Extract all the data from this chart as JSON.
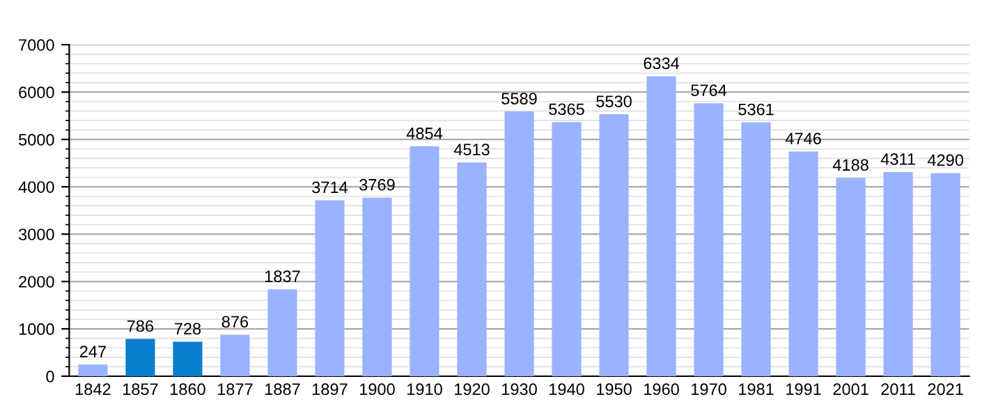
{
  "chart_data": {
    "type": "bar",
    "categories": [
      "1842",
      "1857",
      "1860",
      "1877",
      "1887",
      "1897",
      "1900",
      "1910",
      "1920",
      "1930",
      "1940",
      "1950",
      "1960",
      "1970",
      "1981",
      "1991",
      "2001",
      "2011",
      "2021"
    ],
    "values": [
      247,
      786,
      728,
      876,
      1837,
      3714,
      3769,
      4854,
      4513,
      5589,
      5365,
      5530,
      6334,
      5764,
      5361,
      4746,
      4188,
      4311,
      4290
    ],
    "colors": [
      "#99b3ff",
      "#0b7dcd",
      "#0b7dcd",
      "#99b3ff",
      "#99b3ff",
      "#99b3ff",
      "#99b3ff",
      "#99b3ff",
      "#99b3ff",
      "#99b3ff",
      "#99b3ff",
      "#99b3ff",
      "#99b3ff",
      "#99b3ff",
      "#99b3ff",
      "#99b3ff",
      "#99b3ff",
      "#99b3ff",
      "#99b3ff"
    ],
    "ylim": [
      0,
      7000
    ],
    "yticks": [
      0,
      {
        "value": 200,
        "label": null
      },
      {
        "value": 400,
        "label": null
      },
      {
        "value": 600,
        "label": null
      },
      {
        "value": 800,
        "label": null
      },
      1000,
      {
        "value": 1200,
        "label": null
      },
      {
        "value": 1400,
        "label": null
      },
      {
        "value": 1600,
        "label": null
      },
      {
        "value": 1800,
        "label": null
      },
      2000,
      {
        "value": 2200,
        "label": null
      },
      {
        "value": 2400,
        "label": null
      },
      {
        "value": 2600,
        "label": null
      },
      {
        "value": 2800,
        "label": null
      },
      3000,
      {
        "value": 3200,
        "label": null
      },
      {
        "value": 3400,
        "label": null
      },
      {
        "value": 3600,
        "label": null
      },
      {
        "value": 3800,
        "label": null
      },
      4000,
      {
        "value": 4200,
        "label": null
      },
      {
        "value": 4400,
        "label": null
      },
      {
        "value": 4600,
        "label": null
      },
      {
        "value": 4800,
        "label": null
      },
      5000,
      {
        "value": 5200,
        "label": null
      },
      {
        "value": 5400,
        "label": null
      },
      {
        "value": 5600,
        "label": null
      },
      {
        "value": 5800,
        "label": null
      },
      6000,
      {
        "value": 6200,
        "label": null
      },
      {
        "value": 6400,
        "label": null
      },
      {
        "value": 6600,
        "label": null
      },
      {
        "value": 6800,
        "label": null
      },
      7000
    ],
    "grid": "y",
    "data_labels": true
  }
}
